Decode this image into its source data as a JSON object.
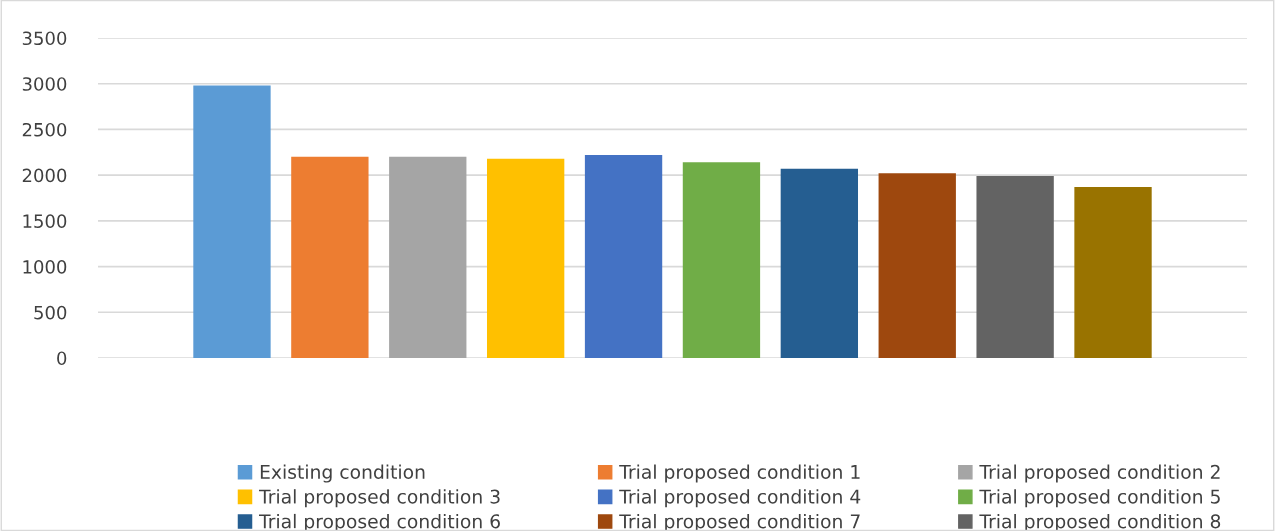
{
  "chart_data": {
    "type": "bar",
    "categories": [
      null
    ],
    "series": [
      {
        "name": "Existing condition",
        "color": "#5b9bd5",
        "values": [
          2980
        ]
      },
      {
        "name": "Trial proposed condition 1",
        "color": "#ed7d31",
        "values": [
          2200
        ]
      },
      {
        "name": "Trial proposed condition 2",
        "color": "#a5a5a5",
        "values": [
          2200
        ]
      },
      {
        "name": "Trial proposed condition 3",
        "color": "#ffc000",
        "values": [
          2180
        ]
      },
      {
        "name": "Trial proposed condition 4",
        "color": "#4472c4",
        "values": [
          2220
        ]
      },
      {
        "name": "Trial proposed condition 5",
        "color": "#70ad47",
        "values": [
          2140
        ]
      },
      {
        "name": "Trial proposed condition 6",
        "color": "#255e91",
        "values": [
          2070
        ]
      },
      {
        "name": "Trial proposed condition 7",
        "color": "#9e480e",
        "values": [
          2020
        ]
      },
      {
        "name": "Trial proposed condition 8",
        "color": "#636363",
        "values": [
          1990
        ]
      },
      {
        "color": "#997300",
        "values": [
          1870
        ]
      }
    ],
    "ylim": [
      0,
      3500
    ],
    "yticks": [
      0,
      500,
      1000,
      1500,
      2000,
      2500,
      3000,
      3500
    ],
    "grid": "y",
    "legend": "bottom"
  }
}
